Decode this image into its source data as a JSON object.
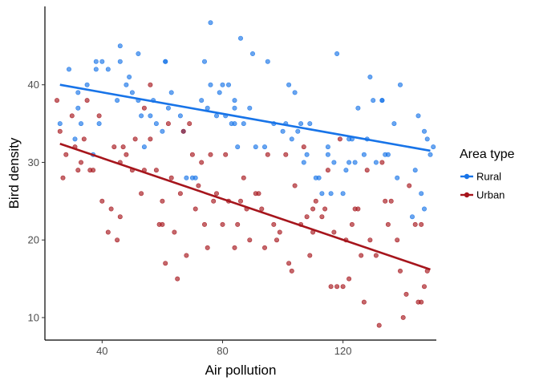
{
  "chart_data": {
    "type": "scatter",
    "title": "",
    "xlabel": "Air pollution",
    "ylabel": "Bird density",
    "xlim": [
      21,
      151
    ],
    "ylim": [
      7.1,
      50.1
    ],
    "xticks": [
      40,
      80,
      120
    ],
    "yticks": [
      10,
      20,
      30,
      40
    ],
    "grid": false,
    "legend": {
      "title": "Area type",
      "position": "right"
    },
    "series": [
      {
        "name": "Rural",
        "color": "#1874e8",
        "trend": {
          "x": [
            26,
            149
          ],
          "y": [
            40,
            31.5
          ]
        },
        "points": [
          [
            26,
            35
          ],
          [
            29,
            42
          ],
          [
            31,
            33
          ],
          [
            32,
            37
          ],
          [
            32,
            39
          ],
          [
            33,
            35
          ],
          [
            35,
            40
          ],
          [
            37,
            31
          ],
          [
            38,
            42
          ],
          [
            38,
            43
          ],
          [
            39,
            35
          ],
          [
            40,
            43
          ],
          [
            42,
            42
          ],
          [
            45,
            38
          ],
          [
            46,
            43
          ],
          [
            46,
            45
          ],
          [
            48,
            40
          ],
          [
            49,
            41
          ],
          [
            50,
            39
          ],
          [
            52,
            44
          ],
          [
            52,
            38
          ],
          [
            53,
            36
          ],
          [
            54,
            32
          ],
          [
            56,
            36
          ],
          [
            57,
            38
          ],
          [
            58,
            35
          ],
          [
            60,
            34
          ],
          [
            61,
            43
          ],
          [
            61,
            43
          ],
          [
            62,
            37
          ],
          [
            63,
            39
          ],
          [
            66,
            36
          ],
          [
            67,
            34
          ],
          [
            68,
            28
          ],
          [
            70,
            28
          ],
          [
            71,
            28
          ],
          [
            73,
            38
          ],
          [
            74,
            43
          ],
          [
            75,
            37
          ],
          [
            76,
            40
          ],
          [
            76,
            48
          ],
          [
            78,
            36
          ],
          [
            79,
            39
          ],
          [
            80,
            40
          ],
          [
            81,
            36
          ],
          [
            82,
            40
          ],
          [
            83,
            35
          ],
          [
            84,
            35
          ],
          [
            84,
            37
          ],
          [
            84,
            38
          ],
          [
            85,
            32
          ],
          [
            86,
            46
          ],
          [
            87,
            35
          ],
          [
            89,
            37
          ],
          [
            90,
            44
          ],
          [
            91,
            32
          ],
          [
            94,
            32
          ],
          [
            95,
            43
          ],
          [
            97,
            35
          ],
          [
            100,
            34
          ],
          [
            101,
            35
          ],
          [
            102,
            40
          ],
          [
            103,
            33
          ],
          [
            104,
            39
          ],
          [
            105,
            34
          ],
          [
            106,
            35
          ],
          [
            107,
            30
          ],
          [
            108,
            31
          ],
          [
            109,
            35
          ],
          [
            111,
            28
          ],
          [
            112,
            28
          ],
          [
            113,
            26
          ],
          [
            115,
            31
          ],
          [
            115,
            32
          ],
          [
            116,
            26
          ],
          [
            117,
            30
          ],
          [
            118,
            44
          ],
          [
            120,
            26
          ],
          [
            121,
            29
          ],
          [
            122,
            33
          ],
          [
            122,
            30
          ],
          [
            123,
            33
          ],
          [
            124,
            30
          ],
          [
            125,
            37
          ],
          [
            127,
            31
          ],
          [
            128,
            33
          ],
          [
            129,
            41
          ],
          [
            130,
            38
          ],
          [
            131,
            30
          ],
          [
            133,
            38
          ],
          [
            133,
            38
          ],
          [
            134,
            31
          ],
          [
            135,
            31
          ],
          [
            137,
            35
          ],
          [
            138,
            28
          ],
          [
            139,
            40
          ],
          [
            143,
            23
          ],
          [
            144,
            29
          ],
          [
            145,
            36
          ],
          [
            146,
            26
          ],
          [
            147,
            34
          ],
          [
            147,
            24
          ],
          [
            148,
            33
          ],
          [
            149,
            31
          ],
          [
            150,
            32
          ]
        ]
      },
      {
        "name": "Urban",
        "color": "#a6151c",
        "trend": {
          "x": [
            26,
            149
          ],
          "y": [
            32.4,
            16.2
          ]
        },
        "points": [
          [
            25,
            38
          ],
          [
            26,
            34
          ],
          [
            27,
            28
          ],
          [
            28,
            31
          ],
          [
            30,
            36
          ],
          [
            31,
            32
          ],
          [
            32,
            29
          ],
          [
            33,
            30
          ],
          [
            34,
            33
          ],
          [
            35,
            38
          ],
          [
            36,
            29
          ],
          [
            37,
            29
          ],
          [
            39,
            36
          ],
          [
            40,
            25
          ],
          [
            42,
            21
          ],
          [
            43,
            24
          ],
          [
            44,
            32
          ],
          [
            45,
            20
          ],
          [
            46,
            23
          ],
          [
            46,
            30
          ],
          [
            47,
            32
          ],
          [
            48,
            31
          ],
          [
            50,
            29
          ],
          [
            51,
            33
          ],
          [
            53,
            26
          ],
          [
            54,
            29
          ],
          [
            54,
            37
          ],
          [
            56,
            40
          ],
          [
            56,
            33
          ],
          [
            58,
            29
          ],
          [
            59,
            22
          ],
          [
            60,
            25
          ],
          [
            60,
            22
          ],
          [
            61,
            17
          ],
          [
            62,
            35
          ],
          [
            63,
            28
          ],
          [
            64,
            21
          ],
          [
            65,
            15
          ],
          [
            66,
            26
          ],
          [
            67,
            34
          ],
          [
            68,
            18
          ],
          [
            69,
            35
          ],
          [
            70,
            31
          ],
          [
            71,
            24
          ],
          [
            72,
            27
          ],
          [
            73,
            30
          ],
          [
            74,
            22
          ],
          [
            75,
            19
          ],
          [
            76,
            31
          ],
          [
            77,
            25
          ],
          [
            78,
            26
          ],
          [
            80,
            22
          ],
          [
            81,
            31
          ],
          [
            82,
            25
          ],
          [
            84,
            19
          ],
          [
            85,
            22
          ],
          [
            86,
            25
          ],
          [
            87,
            28
          ],
          [
            88,
            24
          ],
          [
            89,
            20
          ],
          [
            91,
            26
          ],
          [
            92,
            26
          ],
          [
            93,
            24
          ],
          [
            94,
            19
          ],
          [
            95,
            31
          ],
          [
            97,
            22
          ],
          [
            98,
            20
          ],
          [
            99,
            21
          ],
          [
            101,
            31
          ],
          [
            102,
            17
          ],
          [
            103,
            16
          ],
          [
            104,
            27
          ],
          [
            106,
            22
          ],
          [
            107,
            32
          ],
          [
            108,
            23
          ],
          [
            109,
            18
          ],
          [
            110,
            21
          ],
          [
            110,
            24
          ],
          [
            111,
            25
          ],
          [
            113,
            23
          ],
          [
            114,
            24
          ],
          [
            115,
            29
          ],
          [
            116,
            14
          ],
          [
            117,
            21
          ],
          [
            118,
            14
          ],
          [
            119,
            33
          ],
          [
            120,
            14
          ],
          [
            121,
            20
          ],
          [
            122,
            15
          ],
          [
            123,
            22
          ],
          [
            124,
            24
          ],
          [
            125,
            24
          ],
          [
            126,
            18
          ],
          [
            127,
            12
          ],
          [
            128,
            29
          ],
          [
            129,
            20
          ],
          [
            131,
            18
          ],
          [
            132,
            9
          ],
          [
            133,
            30
          ],
          [
            134,
            25
          ],
          [
            135,
            22
          ],
          [
            136,
            25
          ],
          [
            138,
            20
          ],
          [
            139,
            16
          ],
          [
            140,
            10
          ],
          [
            141,
            13
          ],
          [
            142,
            27
          ],
          [
            144,
            22
          ],
          [
            145,
            12
          ],
          [
            146,
            12
          ],
          [
            146,
            22
          ],
          [
            147,
            14
          ],
          [
            148,
            16
          ]
        ]
      }
    ]
  }
}
